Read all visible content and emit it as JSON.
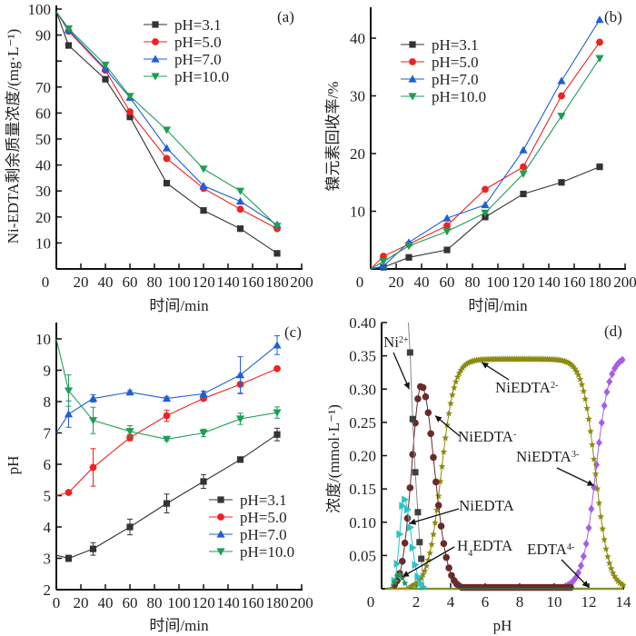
{
  "chart_data": [
    {
      "id": "a",
      "type": "line",
      "panel_label": "(a)",
      "title": "",
      "xlabel": "时间/min",
      "ylabel": "Ni-EDTA剩余质量浓度/(mg·L⁻¹)",
      "xlim": [
        0,
        200
      ],
      "ylim": [
        0,
        100
      ],
      "xticks": [
        0,
        20,
        40,
        60,
        80,
        100,
        120,
        140,
        160,
        180,
        200
      ],
      "yticks": [
        10,
        20,
        30,
        40,
        50,
        60,
        70,
        80,
        90,
        100
      ],
      "ytick_labels": [
        "10",
        "20",
        "30",
        "40",
        "50",
        "60",
        "70",
        "",
        "90",
        "100"
      ],
      "legend_position": "top-center",
      "x": [
        0,
        10,
        40,
        60,
        90,
        120,
        150,
        180
      ],
      "series": [
        {
          "name": "pH=3.1",
          "color": "#333333",
          "marker": "square",
          "values": [
            99,
            86,
            73,
            58.5,
            33,
            22.5,
            15.5,
            6
          ]
        },
        {
          "name": "pH=5.0",
          "color": "#ee2222",
          "marker": "circle",
          "values": [
            99,
            91.5,
            76.5,
            60.5,
            42.5,
            31,
            23,
            15.5
          ]
        },
        {
          "name": "pH=7.0",
          "color": "#1f5fd6",
          "marker": "triangle-up",
          "values": [
            99,
            92,
            77,
            66,
            46.5,
            32,
            26,
            17
          ]
        },
        {
          "name": "pH=10.0",
          "color": "#1e9e55",
          "marker": "triangle-down",
          "values": [
            99,
            92.5,
            78.5,
            66.5,
            53.5,
            38.5,
            30,
            16.5
          ]
        }
      ]
    },
    {
      "id": "b",
      "type": "line",
      "panel_label": "(b)",
      "title": "",
      "xlabel": "时间/min",
      "ylabel": "镍元素回收率/%",
      "xlim": [
        0,
        200
      ],
      "ylim": [
        0,
        45
      ],
      "xticks": [
        0,
        20,
        40,
        60,
        80,
        100,
        120,
        140,
        160,
        180,
        200
      ],
      "yticks": [
        10,
        20,
        30,
        40
      ],
      "ytick_labels": [
        "10",
        "20",
        "30",
        "40"
      ],
      "legend_position": "top-left",
      "x": [
        0,
        10,
        30,
        60,
        90,
        120,
        150,
        180
      ],
      "series": [
        {
          "name": "pH=3.1",
          "color": "#333333",
          "marker": "square",
          "values": [
            0,
            0.3,
            2,
            3.3,
            9,
            13,
            15,
            17.7
          ]
        },
        {
          "name": "pH=5.0",
          "color": "#ee2222",
          "marker": "circle",
          "values": [
            0,
            2.2,
            4.3,
            7.5,
            13.8,
            17.7,
            30,
            39.3
          ]
        },
        {
          "name": "pH=7.0",
          "color": "#1f5fd6",
          "marker": "triangle-up",
          "values": [
            0,
            0.5,
            4.6,
            8.8,
            11.1,
            20.6,
            32.6,
            43.2
          ]
        },
        {
          "name": "pH=10.0",
          "color": "#1e9e55",
          "marker": "triangle-down",
          "values": [
            0,
            1.3,
            4,
            6.5,
            9.7,
            16.5,
            26.5,
            36.5
          ]
        }
      ]
    },
    {
      "id": "c",
      "type": "line",
      "panel_label": "(c)",
      "title": "",
      "xlabel": "时间/min",
      "ylabel": "pH",
      "xlim": [
        0,
        200
      ],
      "ylim": [
        2,
        10.5
      ],
      "xticks": [
        0,
        20,
        40,
        60,
        80,
        100,
        120,
        140,
        160,
        180,
        200
      ],
      "yticks": [
        2,
        3,
        4,
        5,
        6,
        7,
        8,
        9,
        10
      ],
      "ytick_labels": [
        "2",
        "3",
        "4",
        "5",
        "6",
        "7",
        "8",
        "9",
        "10"
      ],
      "legend_position": "bottom-right",
      "error_bars": true,
      "x": [
        0,
        10,
        30,
        60,
        90,
        120,
        150,
        180
      ],
      "series": [
        {
          "name": "pH=3.1",
          "color": "#333333",
          "marker": "square",
          "values": [
            3.1,
            3.0,
            3.3,
            4.0,
            4.75,
            5.45,
            6.15,
            6.95
          ],
          "errors": [
            0,
            0.1,
            0.2,
            0.25,
            0.3,
            0.22,
            0.05,
            0.2
          ]
        },
        {
          "name": "pH=5.0",
          "color": "#ee2222",
          "marker": "circle",
          "values": [
            5.0,
            5.1,
            5.9,
            6.85,
            7.55,
            8.1,
            8.55,
            9.05
          ],
          "errors": [
            0,
            0.05,
            0.6,
            0.1,
            0.18,
            0.05,
            0.3,
            0.05
          ]
        },
        {
          "name": "pH=7.0",
          "color": "#1f5fd6",
          "marker": "triangle-up",
          "values": [
            7.0,
            7.6,
            8.1,
            8.3,
            8.1,
            8.25,
            8.85,
            9.8
          ],
          "errors": [
            0,
            0.42,
            0.12,
            0.05,
            0.05,
            0.08,
            0.58,
            0.3
          ]
        },
        {
          "name": "pH=10.0",
          "color": "#1e9e55",
          "marker": "triangle-down",
          "values": [
            10.0,
            8.35,
            7.4,
            7.05,
            6.8,
            7.0,
            7.45,
            7.65
          ],
          "errors": [
            0,
            0.5,
            0.42,
            0.18,
            0.05,
            0.12,
            0.18,
            0.18
          ]
        }
      ]
    },
    {
      "id": "d",
      "type": "line",
      "panel_label": "(d)",
      "title": "",
      "xlabel": "pH",
      "ylabel": "浓度/(mmol·L⁻¹)",
      "xlim": [
        0,
        14
      ],
      "ylim": [
        0,
        0.4
      ],
      "xticks": [
        0,
        2,
        4,
        6,
        8,
        10,
        12,
        14
      ],
      "yticks": [
        0.05,
        0.1,
        0.15,
        0.2,
        0.25,
        0.3,
        0.35,
        0.4
      ],
      "ytick_labels": [
        "0.05",
        "0.10",
        "0.15",
        "0.20",
        "0.25",
        "0.30",
        "0.35",
        "0.40"
      ],
      "series": [
        {
          "name": "Ni²⁺",
          "label_base": "Ni",
          "label_sup": "2+",
          "color": "#404040",
          "line_color": "#888888",
          "marker": "square",
          "x": [
            1.55,
            1.65,
            1.8,
            1.95,
            2.1,
            2.2,
            2.3,
            2.45
          ],
          "values": [
            0.4,
            0.355,
            0.255,
            0.175,
            0.115,
            0.07,
            0.045,
            0.0
          ]
        },
        {
          "name": "NiEDTA⁻",
          "label_base": "NiEDTA",
          "label_sup": "-",
          "color": "#6b2a2a",
          "marker": "circle",
          "peak": {
            "center": 2.3,
            "height": 0.305,
            "width_left": 0.55,
            "width_right": 0.75
          }
        },
        {
          "name": "NiEDTA",
          "label_base": "NiEDTA",
          "label_sup": "",
          "color": "#2cc3c8",
          "marker": "triangle-right",
          "peak": {
            "center": 1.3,
            "height": 0.135,
            "width_left": 0.25,
            "width_right": 0.4
          }
        },
        {
          "name": "H₄EDTA",
          "label_base": "H",
          "label_sub": "4",
          "label_rest": "EDTA",
          "color": "#1f9a4e",
          "marker": "star",
          "peak": {
            "center": 1.0,
            "height": 0.022,
            "width_left": 0.2,
            "width_right": 0.25
          }
        },
        {
          "name": "NiEDTA²⁻",
          "label_base": "NiEDTA",
          "label_sup": "2-",
          "color": "#8c8a10",
          "marker": "star",
          "plateau": {
            "height": 0.345,
            "rise_mid": 3.45,
            "rise_k": 2.6,
            "fall_mid": 12.4,
            "fall_k": 2.6
          }
        },
        {
          "name": "NiEDTA³⁻",
          "label_base": "NiEDTA",
          "label_sup": "3-",
          "color": "#a85ce6",
          "marker": "diamond",
          "sigmoid": {
            "height": 0.35,
            "mid": 12.4,
            "k": 2.6
          }
        },
        {
          "name": "EDTA⁴⁻",
          "label_base": "EDTA",
          "label_sup": "4-",
          "color": "#d88a1a",
          "marker": "none",
          "flat": 0.0
        }
      ],
      "annotations": [
        {
          "text_base": "Ni",
          "text_sup": "2+",
          "arrow_to": [
            1.6,
            0.3
          ]
        },
        {
          "text_base": "NiEDTA",
          "text_sup": "2-",
          "arrow_to": [
            5.8,
            0.34
          ]
        },
        {
          "text_base": "NiEDTA",
          "text_sup": "-",
          "arrow_to": [
            3.1,
            0.26
          ]
        },
        {
          "text_base": "NiEDTA",
          "text_sup": "3-",
          "arrow_to": [
            12.3,
            0.155
          ]
        },
        {
          "text_base": "NiEDTA",
          "text_sup": "",
          "arrow_to": [
            1.6,
            0.098
          ]
        },
        {
          "text_base": "H",
          "text_sub": "4",
          "text_rest": "EDTA",
          "arrow_to": [
            1.2,
            0.018
          ]
        },
        {
          "text_base": "EDTA",
          "text_sup": "4-",
          "arrow_to": [
            12.0,
            0.002
          ]
        }
      ]
    }
  ]
}
